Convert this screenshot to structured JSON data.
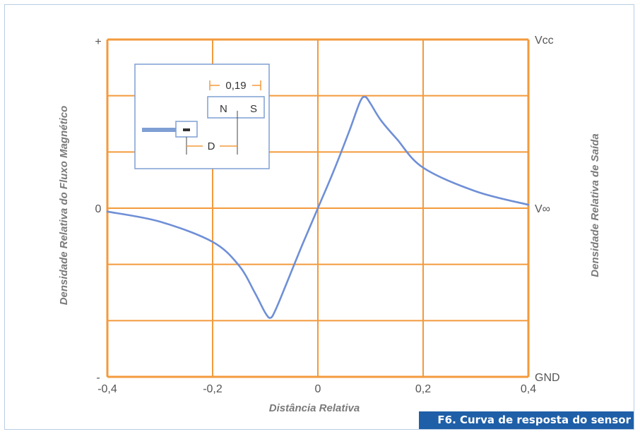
{
  "caption": "F6. Curva de resposta do sensor",
  "colors": {
    "grid": "#f39a3c",
    "curve": "#6f8fd6",
    "caption_bg": "#1f5fa8",
    "text": "#555555"
  },
  "chart_data": {
    "type": "line",
    "xlabel": "Distância Relativa",
    "ylabel_left": "Densidade Relativa do Fluxo Magnético",
    "ylabel_right": "Densidade Relativa de Saída",
    "xlim": [
      -0.4,
      0.4
    ],
    "x_ticks": [
      "-0,4",
      "-0,2",
      "0",
      "0,2",
      "0,4"
    ],
    "y_left_ticks": [
      "+",
      "0",
      "-"
    ],
    "y_right_ticks": [
      "Vcc",
      "V∞",
      "GND"
    ],
    "ylim": [
      -1,
      1
    ],
    "grid": true,
    "series": [
      {
        "x": [
          -0.4,
          -0.3,
          -0.2,
          -0.15,
          -0.12,
          -0.1,
          -0.09,
          -0.08,
          -0.06,
          -0.03,
          0,
          0.03,
          0.06,
          0.08,
          0.09,
          0.1,
          0.12,
          0.15,
          0.2,
          0.3,
          0.4
        ],
        "y": [
          -0.02,
          -0.08,
          -0.2,
          -0.34,
          -0.5,
          -0.62,
          -0.65,
          -0.6,
          -0.45,
          -0.22,
          0.0,
          0.22,
          0.46,
          0.63,
          0.66,
          0.62,
          0.52,
          0.41,
          0.24,
          0.1,
          0.02
        ]
      }
    ]
  },
  "inset": {
    "dimension_label": "0,19",
    "north_label": "N",
    "south_label": "S",
    "distance_label": "D"
  }
}
